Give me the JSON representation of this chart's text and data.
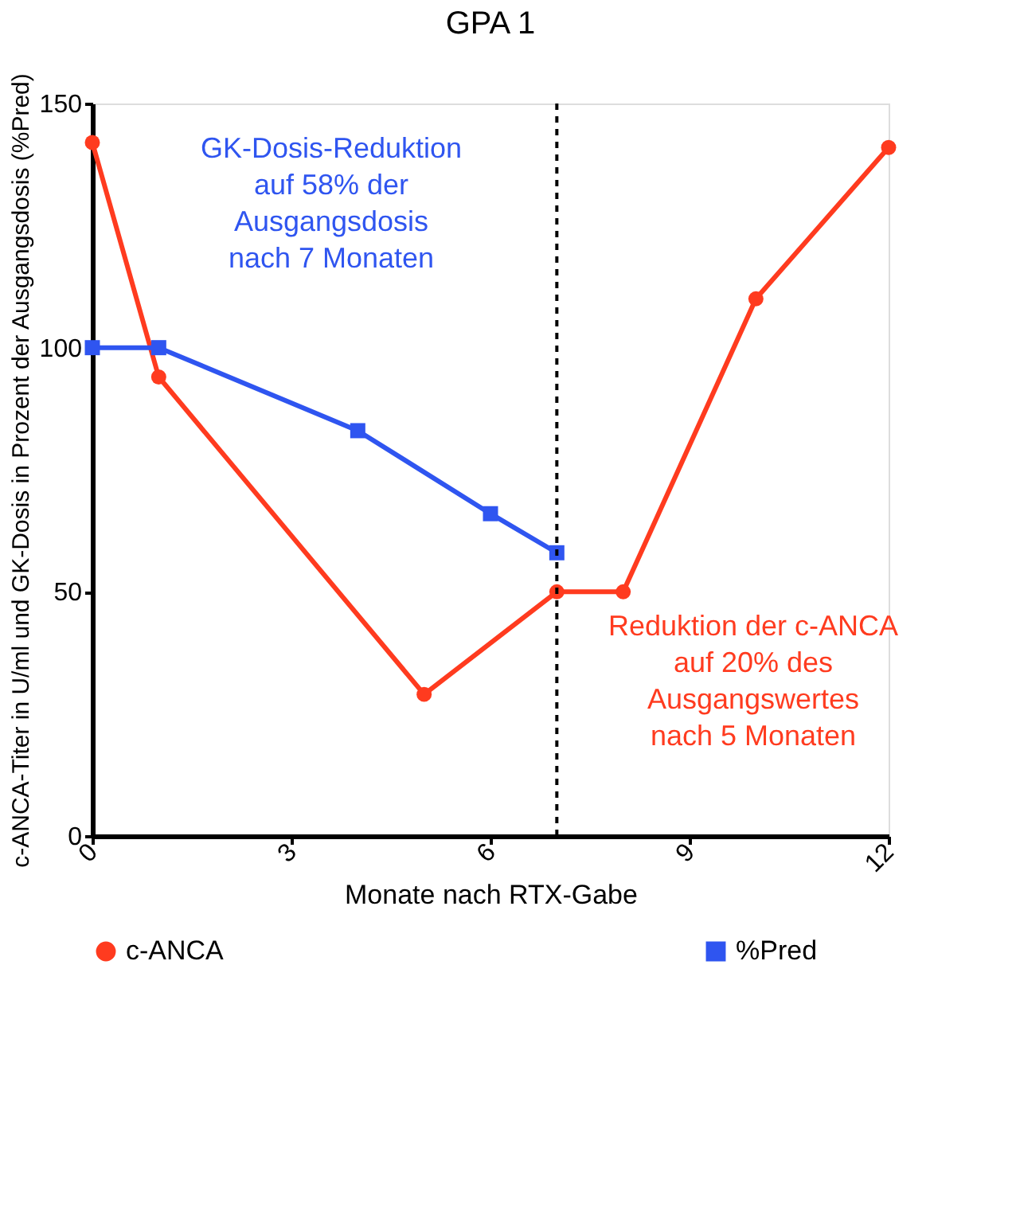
{
  "chart_data": {
    "type": "line",
    "title": "GPA 1",
    "xlabel": "Monate nach RTX-Gabe",
    "ylabel": "c-ANCA-Titer in U/ml und GK-Dosis in Prozent der Ausgangsdosis (%Pred)",
    "series": [
      {
        "name": "c-ANCA",
        "color": "#ff3b1f",
        "marker": "circle",
        "x": [
          0,
          1,
          5,
          7,
          8,
          10,
          12
        ],
        "values": [
          142,
          94,
          29,
          50,
          50,
          110,
          141
        ]
      },
      {
        "name": "%Pred",
        "color": "#2f55f0",
        "marker": "square",
        "x": [
          0,
          1,
          4,
          6,
          7
        ],
        "values": [
          100,
          100,
          83,
          66,
          58
        ]
      }
    ],
    "xlim": [
      0,
      12
    ],
    "xticks": [
      0,
      3,
      6,
      9,
      12
    ],
    "ylim": [
      0,
      150
    ],
    "yticks": [
      0,
      50,
      100,
      150
    ],
    "ref_lines": [
      {
        "axis": "x",
        "value": 7,
        "color": "#000000",
        "line_style": "dashed"
      }
    ],
    "annotations": [
      "GK-Dosis-Reduktion\nauf 58% der\nAusgangsdosis\nnach 7 Monaten",
      "Reduktion der c-ANCA\nauf 20% des\nAusgangswertes\nnach 5 Monaten"
    ],
    "grid": false,
    "legend": "bottom",
    "line_style": "solid"
  }
}
